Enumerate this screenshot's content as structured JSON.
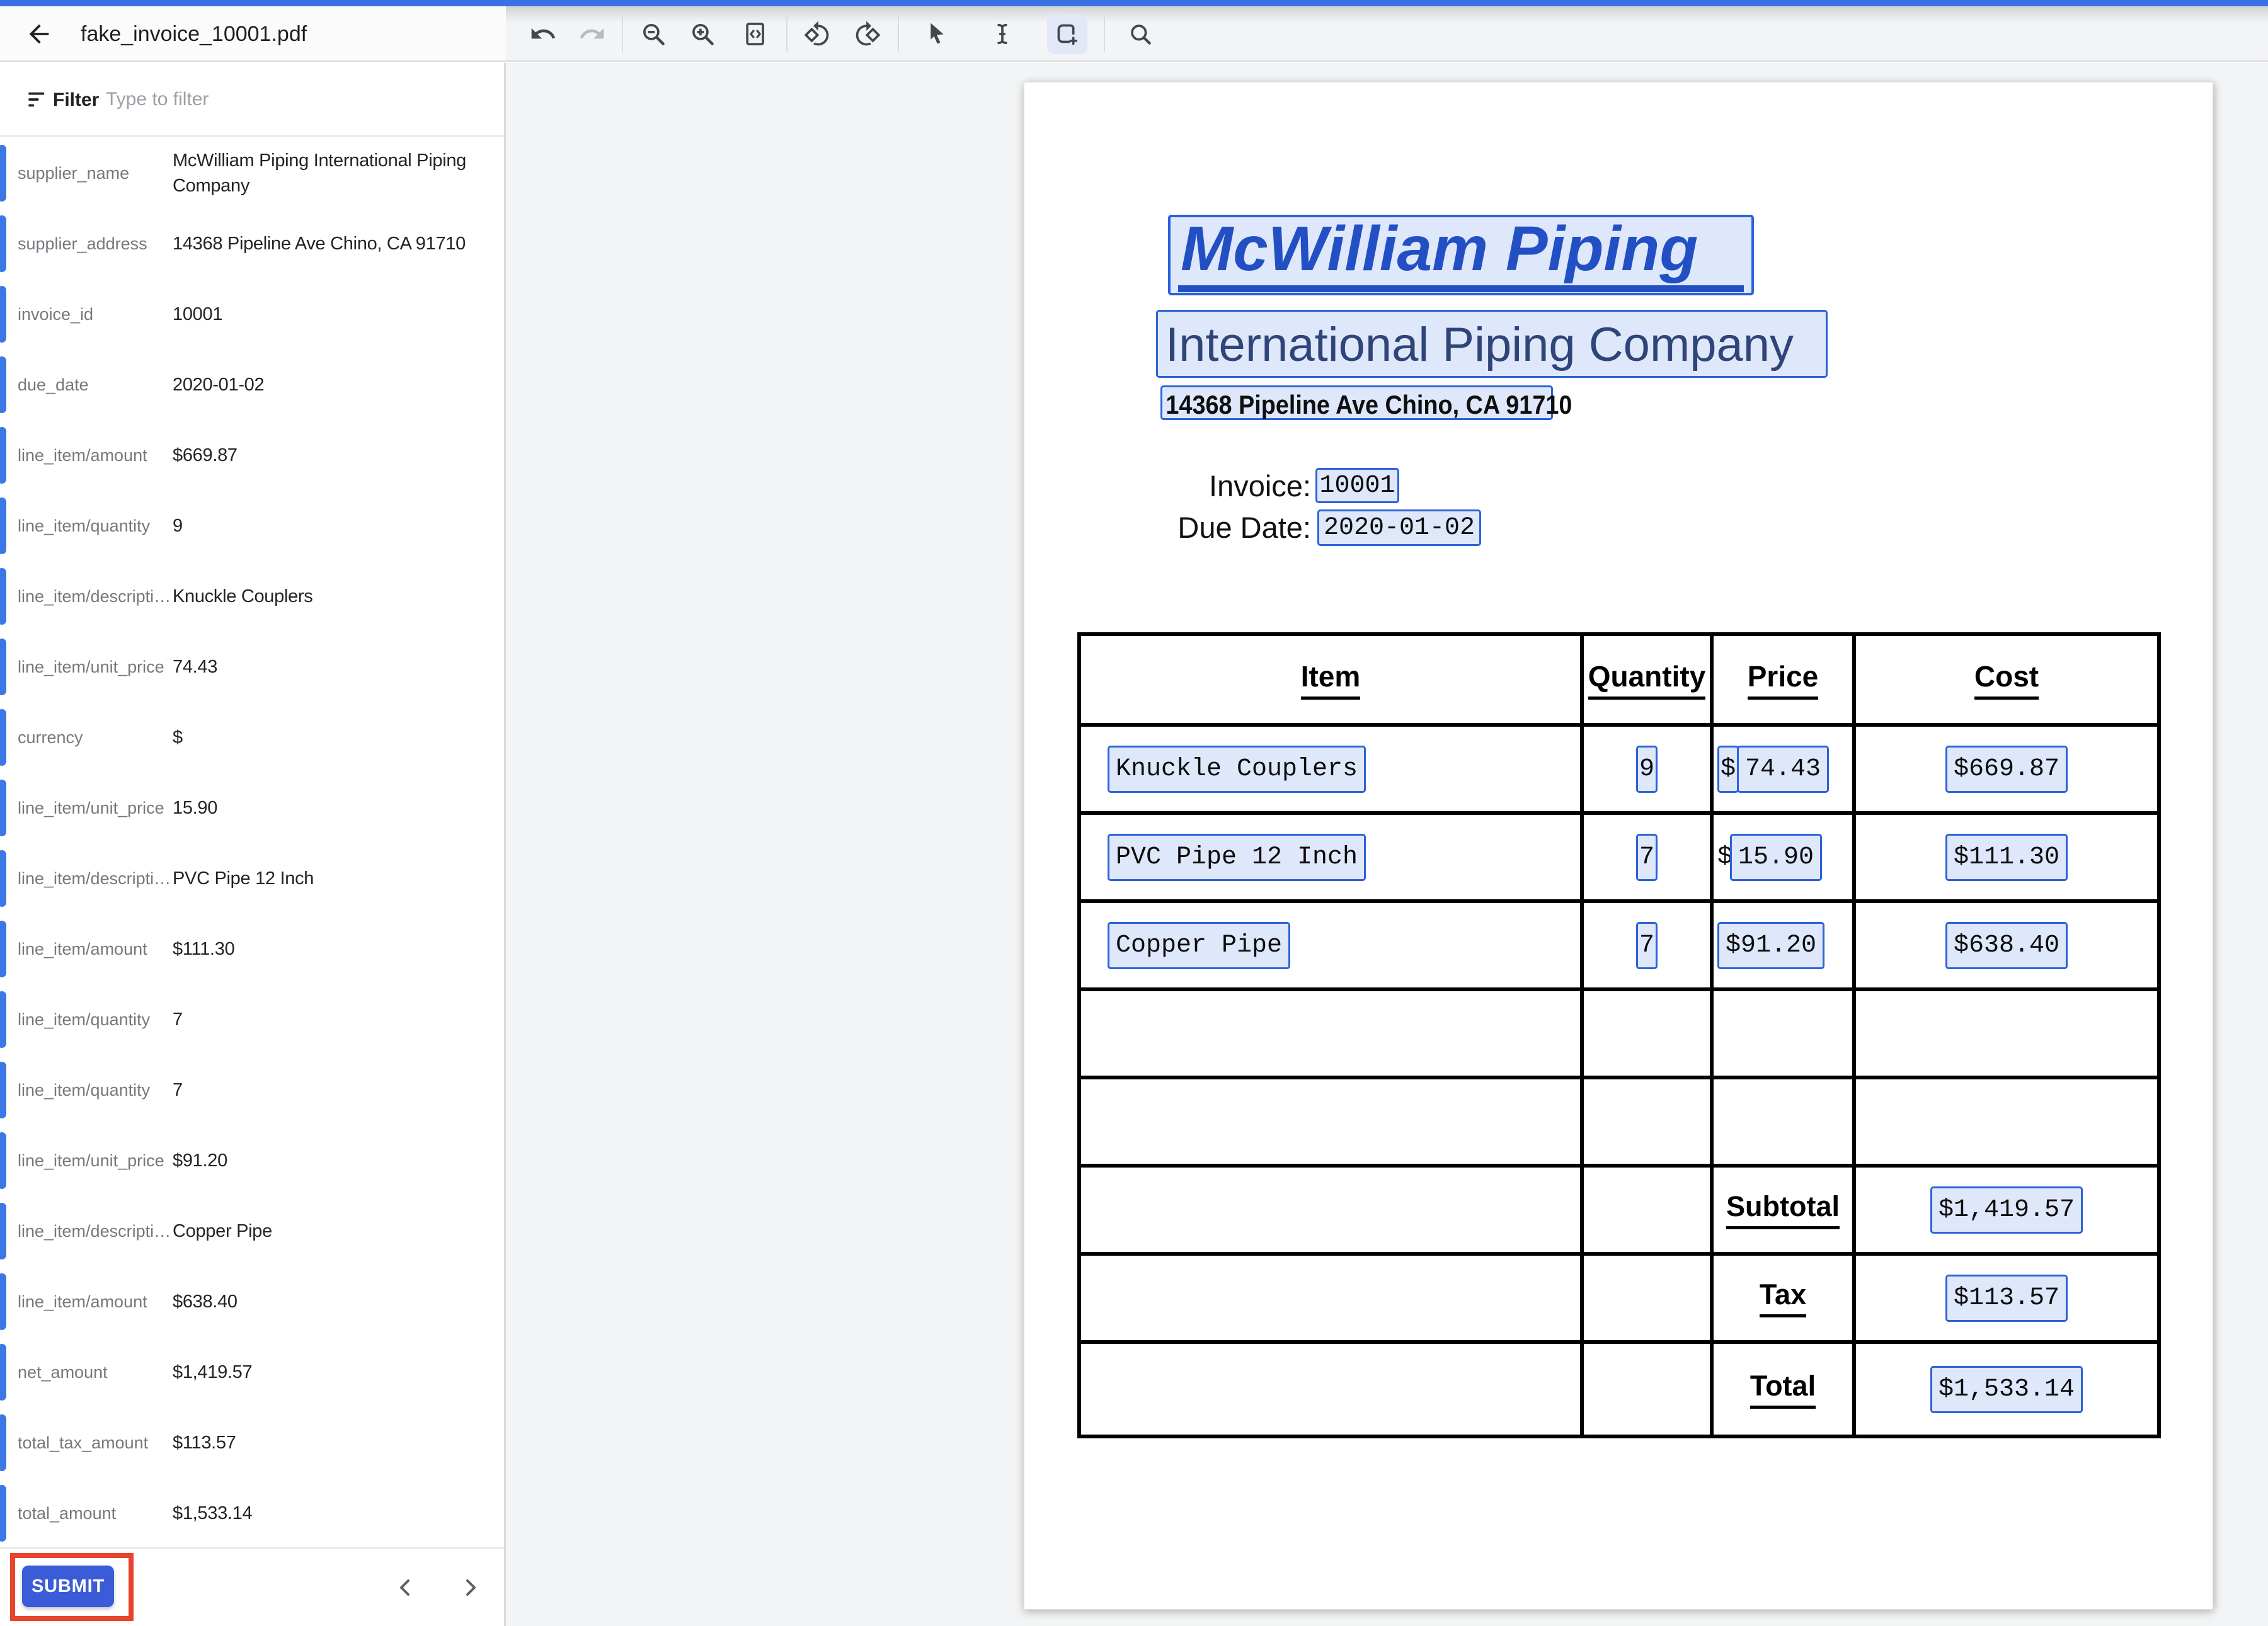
{
  "colors": {
    "top_bar": "#3b72e3",
    "accent": "#3b78e5",
    "hl_border": "#2b62d9",
    "hl_fill": "#dfe7fa",
    "heading": "#2250c4",
    "subheading": "#2f4579",
    "submit": "#3b5cd9",
    "annotation": "#e8432d"
  },
  "app": {
    "title": "fake_invoice_10001.pdf",
    "toolbar_icons": [
      "undo-icon",
      "redo-icon",
      "zoom-out-icon",
      "zoom-in-icon",
      "fit-to-page-icon",
      "rotate-left-icon",
      "rotate-right-icon",
      "cursor-icon",
      "text-select-icon",
      "box-select-icon",
      "search-icon"
    ],
    "selected_tool": "box-select"
  },
  "sidebar": {
    "filter_label": "Filter",
    "filter_placeholder": "Type to filter",
    "fields": [
      {
        "name": "supplier_name",
        "value": "McWilliam Piping International Piping Company"
      },
      {
        "name": "supplier_address",
        "value": "14368 Pipeline Ave Chino, CA 91710"
      },
      {
        "name": "invoice_id",
        "value": "10001"
      },
      {
        "name": "due_date",
        "value": "2020-01-02"
      },
      {
        "name": "line_item/amount",
        "value": "$669.87"
      },
      {
        "name": "line_item/quantity",
        "value": "9"
      },
      {
        "name": "line_item/descripti…",
        "value": "Knuckle Couplers"
      },
      {
        "name": "line_item/unit_price",
        "value": "74.43"
      },
      {
        "name": "currency",
        "value": "$"
      },
      {
        "name": "line_item/unit_price",
        "value": "15.90"
      },
      {
        "name": "line_item/descripti…",
        "value": "PVC Pipe 12 Inch"
      },
      {
        "name": "line_item/amount",
        "value": "$111.30"
      },
      {
        "name": "line_item/quantity",
        "value": "7"
      },
      {
        "name": "line_item/quantity",
        "value": "7"
      },
      {
        "name": "line_item/unit_price",
        "value": "$91.20"
      },
      {
        "name": "line_item/descripti…",
        "value": "Copper Pipe"
      },
      {
        "name": "line_item/amount",
        "value": "$638.40"
      },
      {
        "name": "net_amount",
        "value": "$1,419.57"
      },
      {
        "name": "total_tax_amount",
        "value": "$113.57"
      },
      {
        "name": "total_amount",
        "value": "$1,533.14"
      }
    ],
    "submit_label": "SUBMIT"
  },
  "pdf": {
    "company_title": "McWilliam Piping",
    "company_subtitle": "International Piping Company",
    "company_address": "14368 Pipeline Ave Chino, CA 91710",
    "invoice_label": "Invoice:",
    "invoice_number": "10001",
    "due_date_label": "Due Date:",
    "due_date": "2020-01-02",
    "table": {
      "headers": [
        "Item",
        "Quantity",
        "Price",
        "Cost"
      ],
      "line_items": [
        {
          "item": "Knuckle Couplers",
          "quantity": "9",
          "currency": "$",
          "price": "74.43",
          "cost": "$669.87",
          "currency_style": "boxed-separate"
        },
        {
          "item": "PVC Pipe 12 Inch",
          "quantity": "7",
          "currency": "$",
          "price": "15.90",
          "cost": "$111.30",
          "currency_style": "outside"
        },
        {
          "item": "Copper Pipe",
          "quantity": "7",
          "currency": "",
          "price": "$91.20",
          "cost": "$638.40",
          "currency_style": "inside"
        }
      ],
      "empty_rows": 2,
      "summary_rows": [
        {
          "label": "Subtotal",
          "value": "$1,419.57"
        },
        {
          "label": "Tax",
          "value": "$113.57"
        },
        {
          "label": "Total",
          "value": "$1,533.14"
        }
      ]
    }
  }
}
